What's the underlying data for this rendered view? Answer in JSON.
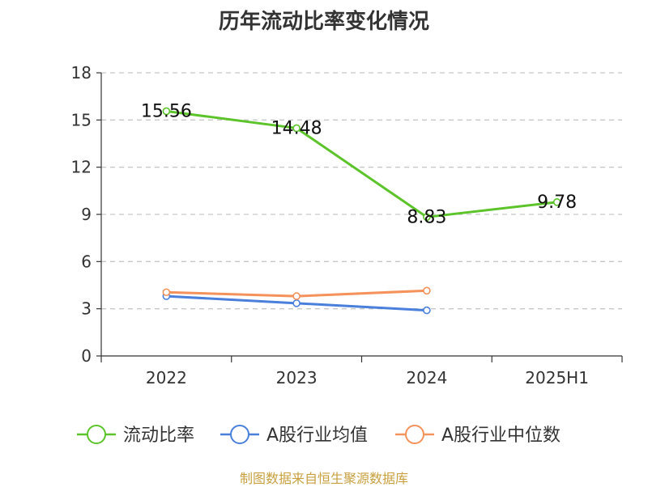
{
  "chart_data": {
    "type": "line",
    "title": "历年流动比率变化情况",
    "categories": [
      "2022",
      "2023",
      "2024",
      "2025H1"
    ],
    "ylim": [
      0,
      18
    ],
    "yticks": [
      0,
      3,
      6,
      9,
      12,
      15,
      18
    ],
    "grid": true,
    "legend_position": "bottom",
    "series": [
      {
        "name": "流动比率",
        "color": "#5cc42a",
        "values": [
          15.56,
          14.48,
          8.83,
          9.78
        ],
        "labels": [
          "15.56",
          "14.48",
          "8.83",
          "9.78"
        ],
        "show_labels": true
      },
      {
        "name": "A股行业均值",
        "color": "#4a7fdc",
        "values": [
          3.8,
          3.35,
          2.9,
          null
        ],
        "show_labels": false
      },
      {
        "name": "A股行业中位数",
        "color": "#f5915a",
        "values": [
          4.05,
          3.8,
          4.15,
          null
        ],
        "show_labels": false
      }
    ]
  },
  "source": "制图数据来自恒生聚源数据库"
}
